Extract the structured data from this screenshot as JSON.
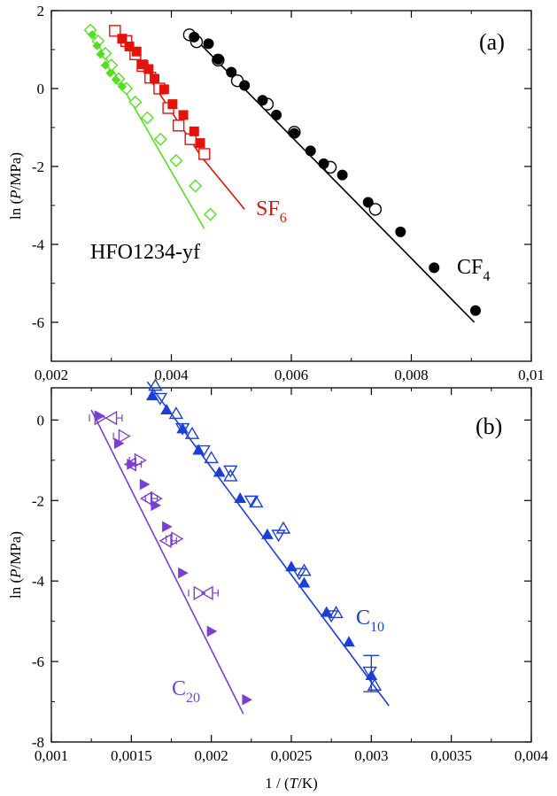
{
  "chart_data": [
    {
      "type": "scatter",
      "panel_label": "(a)",
      "ylabel": "ln (P/MPa)",
      "xlim": [
        0.002,
        0.01
      ],
      "ylim": [
        -7,
        2
      ],
      "x_ticks": [
        0.002,
        0.004,
        0.006,
        0.008,
        0.01
      ],
      "x_tick_labels": [
        "0,002",
        "0,004",
        "0,006",
        "0,008",
        "0,01"
      ],
      "y_ticks": [
        -6,
        -4,
        -2,
        0,
        2
      ],
      "y_tick_labels": [
        "-6",
        "-4",
        "-2",
        "0",
        "2"
      ],
      "series": [
        {
          "name": "CF4",
          "label_main": "CF",
          "label_sub": "4",
          "color": "#000000",
          "fit": [
            [
              0.00435,
              1.35
            ],
            [
              0.00905,
              -6.0
            ]
          ],
          "filled": [
            [
              0.00438,
              1.32
            ],
            [
              0.00462,
              1.15
            ],
            [
              0.00478,
              0.75
            ],
            [
              0.005,
              0.42
            ],
            [
              0.00522,
              0.08
            ],
            [
              0.00552,
              -0.3
            ],
            [
              0.00575,
              -0.68
            ],
            [
              0.00605,
              -1.15
            ],
            [
              0.00632,
              -1.6
            ],
            [
              0.00654,
              -1.93
            ],
            [
              0.00685,
              -2.22
            ],
            [
              0.00728,
              -2.92
            ],
            [
              0.00782,
              -3.68
            ],
            [
              0.00838,
              -4.6
            ],
            [
              0.00907,
              -5.7
            ]
          ],
          "open": [
            [
              0.0043,
              1.38
            ],
            [
              0.00442,
              1.2
            ],
            [
              0.00478,
              0.73
            ],
            [
              0.0051,
              0.2
            ],
            [
              0.0056,
              -0.4
            ],
            [
              0.00605,
              -1.12
            ],
            [
              0.00665,
              -2.02
            ],
            [
              0.0074,
              -3.1
            ]
          ]
        },
        {
          "name": "SF6",
          "label_main": "SF",
          "label_sub": "6",
          "color": "#e3120b",
          "fit": [
            [
              0.0031,
              1.5
            ],
            [
              0.0045,
              -1.75
            ],
            [
              0.00522,
              -3.1
            ]
          ],
          "filled": [
            [
              0.00318,
              1.28
            ],
            [
              0.0033,
              1.08
            ],
            [
              0.00342,
              0.95
            ],
            [
              0.00352,
              0.62
            ],
            [
              0.00362,
              0.5
            ],
            [
              0.00372,
              0.25
            ],
            [
              0.00388,
              -0.02
            ],
            [
              0.00402,
              -0.4
            ],
            [
              0.0042,
              -0.68
            ],
            [
              0.00438,
              -1.1
            ],
            [
              0.00448,
              -1.4
            ]
          ],
          "open": [
            [
              0.00306,
              1.48
            ],
            [
              0.00325,
              1.22
            ],
            [
              0.0034,
              0.88
            ],
            [
              0.00352,
              0.58
            ],
            [
              0.00365,
              0.28
            ],
            [
              0.0038,
              0.0
            ],
            [
              0.00395,
              -0.5
            ],
            [
              0.00412,
              -0.95
            ],
            [
              0.00432,
              -1.3
            ],
            [
              0.00455,
              -1.68
            ]
          ]
        },
        {
          "name": "HFO1234-yf",
          "label_main": "HFO1234-yf",
          "label_sub": "",
          "color": "#55e01f",
          "fit": [
            [
              0.00262,
              1.55
            ],
            [
              0.00455,
              -3.6
            ]
          ],
          "filled": [
            [
              0.00268,
              1.38
            ],
            [
              0.00276,
              1.1
            ],
            [
              0.00282,
              0.88
            ],
            [
              0.0029,
              0.6
            ],
            [
              0.00298,
              0.4
            ],
            [
              0.00308,
              0.22
            ],
            [
              0.00318,
              0.05
            ]
          ],
          "open": [
            [
              0.00265,
              1.5
            ],
            [
              0.00278,
              1.22
            ],
            [
              0.0029,
              0.9
            ],
            [
              0.003,
              0.6
            ],
            [
              0.00312,
              0.25
            ],
            [
              0.00325,
              0.0
            ],
            [
              0.0034,
              -0.35
            ],
            [
              0.0036,
              -0.75
            ],
            [
              0.00382,
              -1.3
            ],
            [
              0.00408,
              -1.85
            ],
            [
              0.0044,
              -2.5
            ],
            [
              0.00465,
              -3.23
            ]
          ]
        }
      ]
    },
    {
      "type": "scatter",
      "panel_label": "(b)",
      "xlabel": "1 / (T/K)",
      "ylabel": "ln (P/MPa)",
      "xlim": [
        0.001,
        0.004
      ],
      "ylim": [
        -8,
        0.8
      ],
      "x_ticks": [
        0.001,
        0.0015,
        0.002,
        0.0025,
        0.003,
        0.0035,
        0.004
      ],
      "x_tick_labels": [
        "0,001",
        "0,0015",
        "0,002",
        "0,0025",
        "0,003",
        "0,0035",
        "0,004"
      ],
      "y_ticks": [
        -8,
        -6,
        -4,
        -2,
        0
      ],
      "y_tick_labels": [
        "-8",
        "-6",
        "-4",
        "-2",
        "0"
      ],
      "series": [
        {
          "name": "C10",
          "label_main": "C",
          "label_sub": "10",
          "color": "#1a3fd6",
          "fit": [
            [
              0.0016,
              0.95
            ],
            [
              0.00311,
              -7.1
            ]
          ],
          "filled": [
            [
              0.00163,
              0.6
            ],
            [
              0.00172,
              0.25
            ],
            [
              0.00182,
              -0.22
            ],
            [
              0.00192,
              -0.75
            ],
            [
              0.00205,
              -1.3
            ],
            [
              0.00218,
              -1.95
            ],
            [
              0.00235,
              -2.85
            ],
            [
              0.0025,
              -3.65
            ],
            [
              0.00258,
              -4.05
            ],
            [
              0.00272,
              -4.78
            ],
            [
              0.00286,
              -5.52
            ],
            [
              0.003,
              -6.35
            ]
          ],
          "open_up": [
            [
              0.00165,
              0.85
            ],
            [
              0.00178,
              0.15
            ],
            [
              0.00188,
              -0.35
            ],
            [
              0.002,
              -0.95
            ],
            [
              0.00212,
              -1.4
            ],
            [
              0.00228,
              -2.05
            ],
            [
              0.00245,
              -2.7
            ],
            [
              0.00258,
              -3.75
            ],
            [
              0.00278,
              -4.8
            ],
            [
              0.00302,
              -6.6
            ]
          ],
          "open_down": [
            [
              0.00168,
              0.55
            ],
            [
              0.00182,
              -0.2
            ],
            [
              0.00195,
              -0.75
            ],
            [
              0.00212,
              -1.25
            ],
            [
              0.00225,
              -2.0
            ],
            [
              0.00242,
              -2.85
            ],
            [
              0.00255,
              -3.8
            ],
            [
              0.00275,
              -4.85
            ],
            [
              0.00299,
              -6.25
            ]
          ],
          "err_bars": [
            [
              0.003,
              -6.3,
              0.45
            ]
          ]
        },
        {
          "name": "C20",
          "label_main": "C",
          "label_sub": "20",
          "color": "#7b3fd1",
          "fit": [
            [
              0.00125,
              0.25
            ],
            [
              0.0022,
              -7.3
            ]
          ],
          "filled": [
            [
              0.0013,
              0.1
            ],
            [
              0.00142,
              -0.58
            ],
            [
              0.0015,
              -1.1
            ],
            [
              0.00158,
              -1.6
            ],
            [
              0.00165,
              -2.12
            ],
            [
              0.00172,
              -2.65
            ],
            [
              0.00182,
              -3.8
            ],
            [
              0.002,
              -5.25
            ],
            [
              0.00222,
              -6.95
            ]
          ],
          "open_right": [
            [
              0.0013,
              0.05
            ],
            [
              0.00145,
              -0.4
            ],
            [
              0.00155,
              -1.0
            ],
            [
              0.00165,
              -1.95
            ],
            [
              0.00178,
              -2.95
            ],
            [
              0.00192,
              -4.3
            ]
          ],
          "open_left": [
            [
              0.00138,
              0.05
            ],
            [
              0.0015,
              -1.1
            ],
            [
              0.0016,
              -1.95
            ],
            [
              0.00172,
              -3.0
            ],
            [
              0.00198,
              -4.3
            ]
          ]
        }
      ]
    }
  ]
}
